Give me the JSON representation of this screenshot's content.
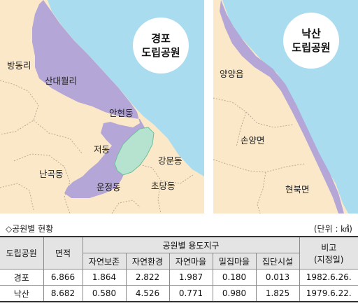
{
  "colors": {
    "sea": "#a9dcef",
    "land": "#fbe8c8",
    "park": "#b4a6d7",
    "lagoon": "#b6e3d0",
    "boundary": "#b8aa94",
    "table_head": "#e4e4e4"
  },
  "map_left": {
    "title_line1": "경포",
    "title_line2": "도립공원",
    "labels": {
      "bangdong": "방동리",
      "sandae": "산대월리",
      "anhyeon": "안현동",
      "jeodong": "저동",
      "nangok": "난곡동",
      "unjeong": "운정동",
      "gangmun": "강문동",
      "chodang": "초당동"
    }
  },
  "map_right": {
    "title_line1": "낙산",
    "title_line2": "도립공원",
    "labels": {
      "yangyang": "양양읍",
      "sonyang": "손양면",
      "hyeonbuk": "현북면"
    }
  },
  "table": {
    "caption": "◇공원별 현황",
    "unit": "(단위 : ㎢)",
    "col_park": "도립공원",
    "col_area": "면적",
    "col_zone_group": "공원별 용도지구",
    "zones": [
      "자연보존",
      "자연환경",
      "자연마을",
      "밀집마을",
      "집단시설"
    ],
    "col_note_line1": "비고",
    "col_note_line2": "(지정일)",
    "rows": [
      {
        "park": "경포",
        "area": "6.866",
        "zones": [
          "1.864",
          "2.822",
          "1.987",
          "0.180",
          "0.013"
        ],
        "note": "1982.6.26."
      },
      {
        "park": "낙산",
        "area": "8.682",
        "zones": [
          "0.580",
          "4.526",
          "0.771",
          "0.980",
          "1.825"
        ],
        "note": "1979.6.22."
      }
    ]
  }
}
